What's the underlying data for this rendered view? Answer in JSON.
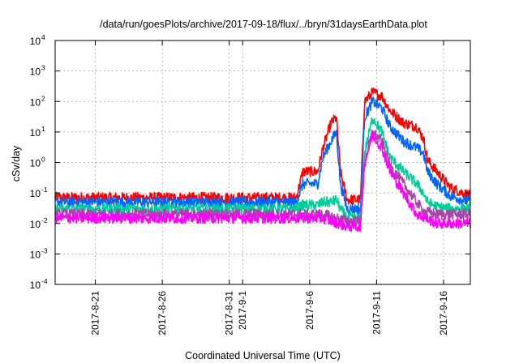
{
  "chart_data": {
    "type": "line",
    "title": "/data/run/goesPlots/archive/2017-09-18/flux/../bryn/31daysEarthData.plot",
    "xlabel": "Coordinated Universal Time (UTC)",
    "ylabel": "cSv/day",
    "y_scale": "log",
    "ylim": [
      0.0001,
      10000
    ],
    "xlim": [
      "2017-08-18",
      "2017-09-18"
    ],
    "x_tick_labels": [
      "2017-8-21",
      "2017-8-26",
      "2017-8-31",
      "2017-9-1",
      "2017-9-6",
      "2017-9-11",
      "2017-9-16"
    ],
    "x_tick_dates": [
      "2017-08-21",
      "2017-08-26",
      "2017-08-31",
      "2017-09-01",
      "2017-09-06",
      "2017-09-11",
      "2017-09-16"
    ],
    "y_tick_labels": [
      {
        "base": "10",
        "exp": "-4"
      },
      {
        "base": "10",
        "exp": "-3"
      },
      {
        "base": "10",
        "exp": "-2"
      },
      {
        "base": "10",
        "exp": "-1"
      },
      {
        "base": "10",
        "exp": "0"
      },
      {
        "base": "10",
        "exp": "1"
      },
      {
        "base": "10",
        "exp": "2"
      },
      {
        "base": "10",
        "exp": "3"
      },
      {
        "base": "10",
        "exp": "4"
      }
    ],
    "grid": true,
    "series": [
      {
        "color": "#ff0000",
        "points": [
          [
            "2017-08-18",
            0.07
          ],
          [
            "2017-08-24",
            0.07
          ],
          [
            "2017-09-05",
            0.07
          ],
          [
            "2017-09-05.5",
            0.5
          ],
          [
            "2017-09-06.6",
            0.5
          ],
          [
            "2017-09-07",
            3
          ],
          [
            "2017-09-07.6",
            20
          ],
          [
            "2017-09-08",
            30
          ],
          [
            "2017-09-08.3",
            0.5
          ],
          [
            "2017-09-08.8",
            0.06
          ],
          [
            "2017-09-09.8",
            0.06
          ],
          [
            "2017-09-10.1",
            100
          ],
          [
            "2017-09-10.7",
            200
          ],
          [
            "2017-09-11.4",
            150
          ],
          [
            "2017-09-12",
            50
          ],
          [
            "2017-09-13",
            20
          ],
          [
            "2017-09-14",
            15
          ],
          [
            "2017-09-14.5",
            6
          ],
          [
            "2017-09-14.8",
            1.2
          ],
          [
            "2017-09-15.5",
            0.5
          ],
          [
            "2017-09-16.5",
            0.15
          ],
          [
            "2017-09-18",
            0.08
          ]
        ]
      },
      {
        "color": "#0066ff",
        "points": [
          [
            "2017-08-18",
            0.05
          ],
          [
            "2017-08-24",
            0.05
          ],
          [
            "2017-09-05",
            0.05
          ],
          [
            "2017-09-05.5",
            0.2
          ],
          [
            "2017-09-06.6",
            0.2
          ],
          [
            "2017-09-07",
            1.5
          ],
          [
            "2017-09-07.6",
            5
          ],
          [
            "2017-09-08",
            10
          ],
          [
            "2017-09-08.3",
            0.2
          ],
          [
            "2017-09-08.8",
            0.03
          ],
          [
            "2017-09-09.8",
            0.03
          ],
          [
            "2017-09-10.1",
            30
          ],
          [
            "2017-09-10.7",
            100
          ],
          [
            "2017-09-11.4",
            60
          ],
          [
            "2017-09-12",
            15
          ],
          [
            "2017-09-13",
            5
          ],
          [
            "2017-09-14",
            3
          ],
          [
            "2017-09-14.5",
            2
          ],
          [
            "2017-09-14.8",
            0.5
          ],
          [
            "2017-09-15.5",
            0.2
          ],
          [
            "2017-09-16.5",
            0.08
          ],
          [
            "2017-09-18",
            0.05
          ]
        ]
      },
      {
        "color": "#00cc99",
        "points": [
          [
            "2017-08-18",
            0.03
          ],
          [
            "2017-08-24",
            0.03
          ],
          [
            "2017-09-05",
            0.03
          ],
          [
            "2017-09-05.5",
            0.04
          ],
          [
            "2017-09-06.6",
            0.04
          ],
          [
            "2017-09-07",
            0.05
          ],
          [
            "2017-09-07.6",
            0.05
          ],
          [
            "2017-09-08",
            0.06
          ],
          [
            "2017-09-08.3",
            0.03
          ],
          [
            "2017-09-08.8",
            0.015
          ],
          [
            "2017-09-09.8",
            0.015
          ],
          [
            "2017-09-10.1",
            2
          ],
          [
            "2017-09-10.7",
            30
          ],
          [
            "2017-09-11.4",
            10
          ],
          [
            "2017-09-12",
            1.5
          ],
          [
            "2017-09-13",
            0.5
          ],
          [
            "2017-09-14",
            0.2
          ],
          [
            "2017-09-14.5",
            0.1
          ],
          [
            "2017-09-14.8",
            0.05
          ],
          [
            "2017-09-15.5",
            0.035
          ],
          [
            "2017-09-16.5",
            0.03
          ],
          [
            "2017-09-18",
            0.03
          ]
        ]
      },
      {
        "color": "#aa44aa",
        "points": [
          [
            "2017-08-18",
            0.02
          ],
          [
            "2017-08-24",
            0.02
          ],
          [
            "2017-09-05",
            0.02
          ],
          [
            "2017-09-07",
            0.02
          ],
          [
            "2017-09-08.8",
            0.012
          ],
          [
            "2017-09-09.8",
            0.012
          ],
          [
            "2017-09-10.1",
            1
          ],
          [
            "2017-09-10.7",
            10
          ],
          [
            "2017-09-11.4",
            5
          ],
          [
            "2017-09-12",
            0.8
          ],
          [
            "2017-09-13",
            0.2
          ],
          [
            "2017-09-14",
            0.05
          ],
          [
            "2017-09-14.5",
            0.025
          ],
          [
            "2017-09-15.5",
            0.02
          ],
          [
            "2017-09-18",
            0.02
          ]
        ]
      },
      {
        "color": "#ff00ff",
        "points": [
          [
            "2017-08-18",
            0.015
          ],
          [
            "2017-08-24",
            0.015
          ],
          [
            "2017-09-05",
            0.015
          ],
          [
            "2017-09-07",
            0.015
          ],
          [
            "2017-09-08.8",
            0.008
          ],
          [
            "2017-09-09.8",
            0.008
          ],
          [
            "2017-09-10.1",
            1
          ],
          [
            "2017-09-10.7",
            8
          ],
          [
            "2017-09-11.4",
            3
          ],
          [
            "2017-09-12",
            0.5
          ],
          [
            "2017-09-13",
            0.1
          ],
          [
            "2017-09-14",
            0.02
          ],
          [
            "2017-09-15.5",
            0.01
          ],
          [
            "2017-09-18",
            0.01
          ]
        ]
      }
    ]
  }
}
